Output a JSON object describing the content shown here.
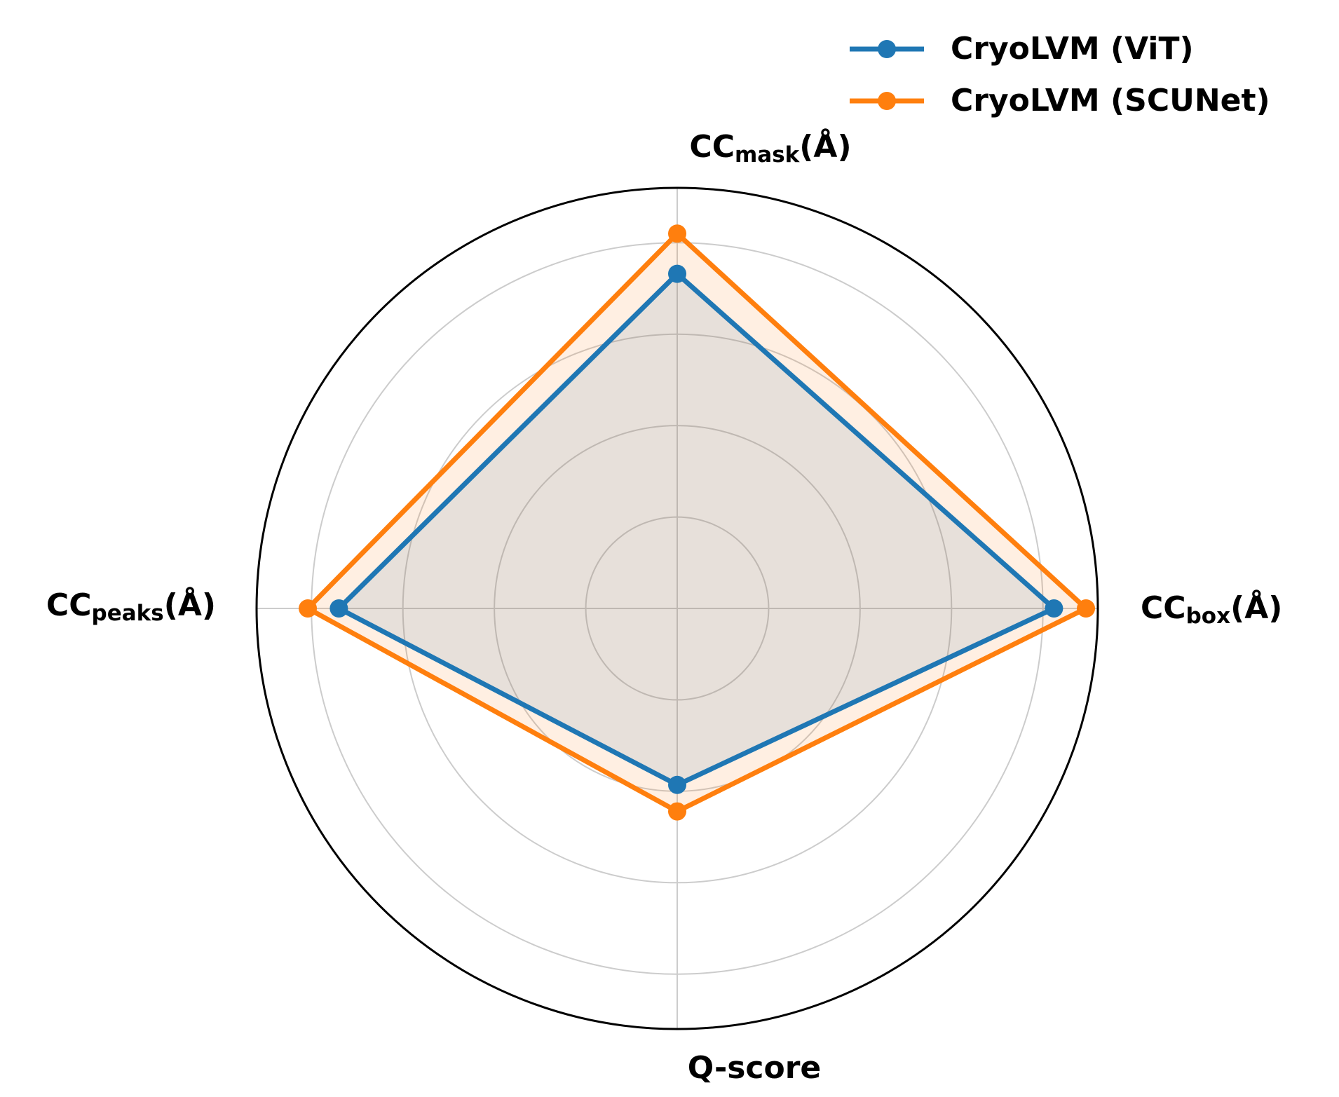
{
  "chart_data": {
    "type": "radar",
    "categories": [
      {
        "main": "CC",
        "sub": "mask",
        "suffix": "(Å)"
      },
      {
        "main": "CC",
        "sub": "box",
        "suffix": "(Å)"
      },
      {
        "main": "Q-score"
      },
      {
        "main": "CC",
        "sub": "peaks",
        "suffix": "(Å)"
      }
    ],
    "series": [
      {
        "name": "CryoLVM (ViT)",
        "color": "#1f77b4",
        "values": [
          3.66,
          4.12,
          1.93,
          3.7
        ]
      },
      {
        "name": "CryoLVM (SCUNet)",
        "color": "#ff7f0e",
        "values": [
          4.1,
          4.47,
          2.22,
          4.04
        ]
      }
    ],
    "rlim": [
      0,
      4.6
    ],
    "rticks": [
      1,
      2,
      3,
      4
    ],
    "grid": true,
    "legend": "upper right"
  }
}
